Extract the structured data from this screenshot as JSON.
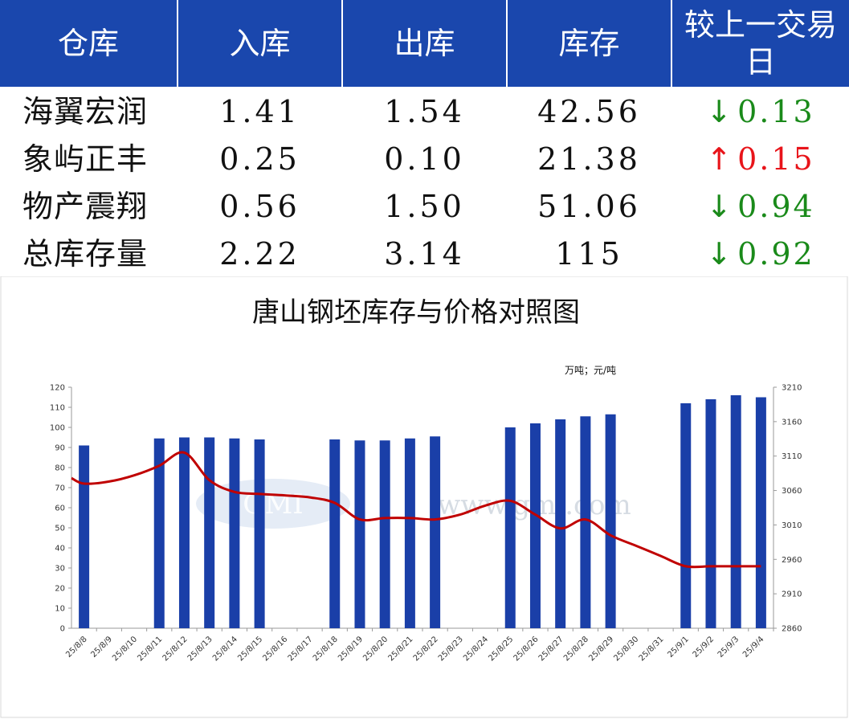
{
  "table": {
    "headers": [
      "仓库",
      "入库",
      "出库",
      "库存",
      "较上一交易日"
    ],
    "rows": [
      {
        "name": "海翼宏润",
        "in": "1.41",
        "out": "1.54",
        "stock": "42.56",
        "dir": "down",
        "arrow": "↓",
        "change": "0.13"
      },
      {
        "name": "象屿正丰",
        "in": "0.25",
        "out": "0.10",
        "stock": "21.38",
        "dir": "up",
        "arrow": "↑",
        "change": "0.15"
      },
      {
        "name": "物产震翔",
        "in": "0.56",
        "out": "1.50",
        "stock": "51.06",
        "dir": "down",
        "arrow": "↓",
        "change": "0.94"
      },
      {
        "name": "总库存量",
        "in": "2.22",
        "out": "3.14",
        "stock": "115",
        "dir": "down",
        "arrow": "↓",
        "change": "0.92"
      }
    ]
  },
  "colors": {
    "header_bg": "#1a47ad",
    "bar": "#1a3fa8",
    "line": "#c00000",
    "down": "#1a8a1a",
    "up": "#e8141a"
  },
  "chart_data": {
    "type": "bar+line",
    "title": "唐山钢坯库存与价格对照图",
    "unit_label": "万吨；元/吨",
    "categories": [
      "25/8/8",
      "25/8/9",
      "25/8/10",
      "25/8/11",
      "25/8/12",
      "25/8/13",
      "25/8/14",
      "25/8/15",
      "25/8/16",
      "25/8/17",
      "25/8/18",
      "25/8/19",
      "25/8/20",
      "25/8/21",
      "25/8/22",
      "25/8/23",
      "25/8/24",
      "25/8/25",
      "25/8/26",
      "25/8/27",
      "25/8/28",
      "25/8/29",
      "25/8/30",
      "25/8/31",
      "25/9/1",
      "25/9/2",
      "25/9/3",
      "25/9/4"
    ],
    "bars": [
      91,
      null,
      null,
      94.5,
      95,
      95,
      94.5,
      94,
      null,
      null,
      94,
      93.5,
      93.5,
      94.5,
      95.5,
      null,
      null,
      100,
      102,
      104,
      105.5,
      106.5,
      null,
      null,
      112,
      114,
      116,
      115
    ],
    "line": [
      3070,
      3073,
      3082,
      3096,
      3115,
      3075,
      3058,
      3055,
      3053,
      3050,
      3042,
      3018,
      3020,
      3020,
      3018,
      3025,
      3038,
      3045,
      3025,
      3005,
      3018,
      2995,
      2980,
      2965,
      2950,
      2950,
      2950,
      2950
    ],
    "y_left": {
      "min": 0,
      "max": 120,
      "ticks": [
        0,
        10,
        20,
        30,
        40,
        50,
        60,
        70,
        80,
        90,
        100,
        110,
        120
      ]
    },
    "y_right": {
      "min": 2860,
      "max": 3210,
      "ticks": [
        2860,
        2910,
        2960,
        3010,
        3060,
        3110,
        3160,
        3210
      ]
    },
    "watermark": "www.gmi.com",
    "grid": false
  }
}
